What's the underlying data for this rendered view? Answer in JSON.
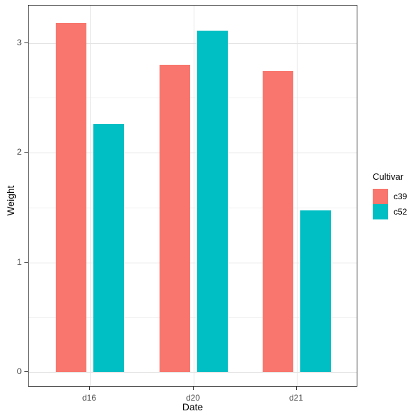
{
  "chart_data": {
    "type": "bar",
    "title": "",
    "xlabel": "Date",
    "ylabel": "Weight",
    "categories": [
      "d16",
      "d20",
      "d21"
    ],
    "series": [
      {
        "name": "c39",
        "color": "#F8766D",
        "values": [
          3.18,
          2.8,
          2.74
        ]
      },
      {
        "name": "c52",
        "color": "#00BFC4",
        "values": [
          2.26,
          3.11,
          1.47
        ]
      }
    ],
    "legend": {
      "title": "Cultivar",
      "position": "right"
    },
    "y_ticks": [
      0,
      1,
      2,
      3
    ],
    "y_minor_ticks": [
      0.5,
      1.5,
      2.5
    ],
    "ylim": [
      -0.16,
      3.34
    ],
    "grid": {
      "horizontal": "major+minor",
      "vertical": "major-at-categories"
    },
    "bar_layout": "dodge",
    "theme": {
      "panel_background": "#ffffff",
      "panel_border": "#333333",
      "grid_major_color": "#e4e4e4",
      "grid_minor_color": "#f1f1f1",
      "axis_text_color": "#4d4d4d",
      "axis_title_color": "#000000"
    }
  }
}
